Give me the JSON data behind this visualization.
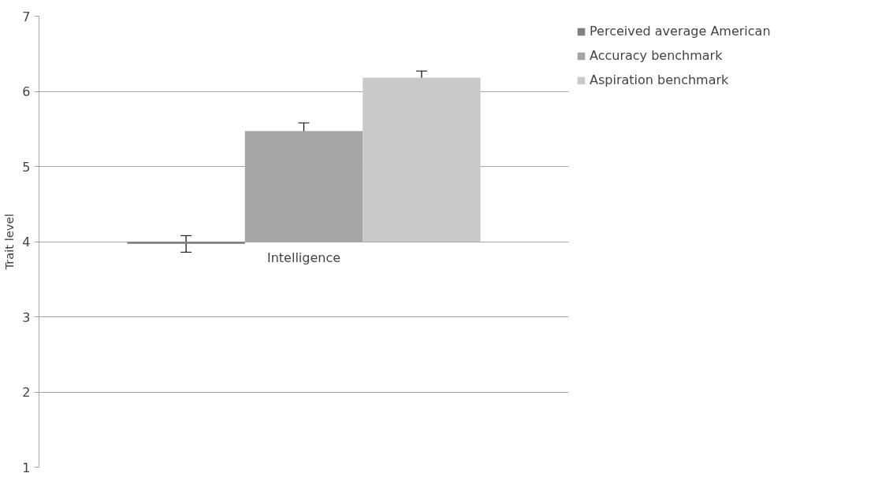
{
  "chart_data": {
    "type": "bar",
    "ylabel": "Trait level",
    "categories": [
      "Intelligence"
    ],
    "series": [
      {
        "name": "Perceived average American",
        "color": "#808080",
        "base": [
          4
        ],
        "values": [
          -0.03
        ],
        "errors": [
          0.11
        ]
      },
      {
        "name": "Accuracy benchmark",
        "color": "#a5a5a5",
        "base": [
          4
        ],
        "values": [
          1.47
        ],
        "errors": [
          0.11
        ]
      },
      {
        "name": "Aspiration benchmark",
        "color": "#c9c9c9",
        "base": [
          4
        ],
        "values": [
          2.18
        ],
        "errors": [
          0.09
        ]
      }
    ],
    "ylim": [
      1,
      7
    ],
    "yticks": [
      1,
      2,
      3,
      4,
      5,
      6,
      7
    ],
    "grid": "y",
    "legend": "top right"
  }
}
